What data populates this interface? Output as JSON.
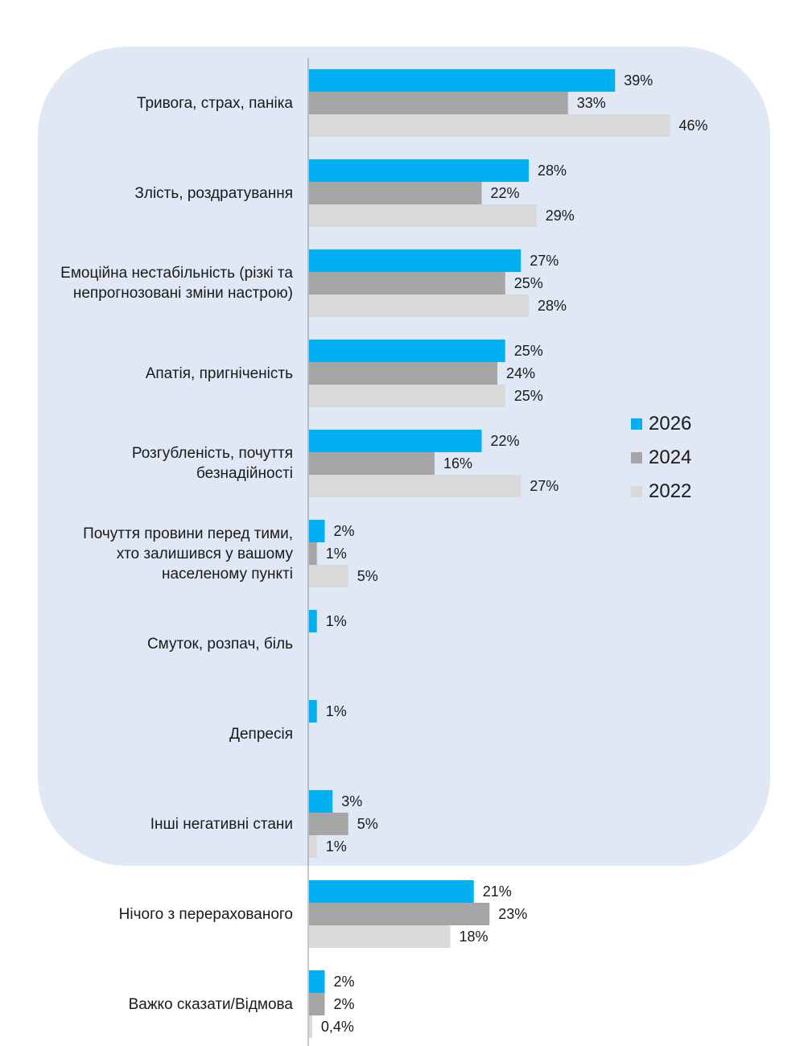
{
  "chart_data": {
    "type": "bar",
    "orientation": "horizontal",
    "categories": [
      "Тривога, страх, паніка",
      "Злість, роздратування",
      "Емоційна нестабільність (різкі та непрогнозовані зміни настрою)",
      "Апатія, пригніченість",
      "Розгубленість, почуття безнадійності",
      "Почуття провини перед тими, хто залишився у вашому населеному пункті",
      "Смуток, розпач, біль",
      "Депресія",
      "Інші негативні стани",
      "Нічого з перерахованого",
      "Важко сказати/Відмова"
    ],
    "series": [
      {
        "name": "2026",
        "color": "#00b0f0",
        "values": [
          39,
          28,
          27,
          25,
          22,
          2,
          1,
          1,
          3,
          21,
          2
        ],
        "labels": [
          "39%",
          "28%",
          "27%",
          "25%",
          "22%",
          "2%",
          "1%",
          "1%",
          "3%",
          "21%",
          "2%"
        ]
      },
      {
        "name": "2024",
        "color": "#a6a6a6",
        "values": [
          33,
          22,
          25,
          24,
          16,
          1,
          null,
          null,
          5,
          23,
          2
        ],
        "labels": [
          "33%",
          "22%",
          "25%",
          "24%",
          "16%",
          "1%",
          null,
          null,
          "5%",
          "23%",
          "2%"
        ]
      },
      {
        "name": "2022",
        "color": "#d9d9d9",
        "values": [
          46,
          29,
          28,
          25,
          27,
          5,
          null,
          null,
          1,
          18,
          0.4
        ],
        "labels": [
          "46%",
          "29%",
          "28%",
          "25%",
          "27%",
          "5%",
          null,
          null,
          "1%",
          "18%",
          "0,4%"
        ]
      }
    ],
    "xlim": [
      0,
      50
    ],
    "legend_position": "right",
    "highlighted_group": "first nine categories (negative states) on a shaded rounded panel",
    "grid": false
  }
}
